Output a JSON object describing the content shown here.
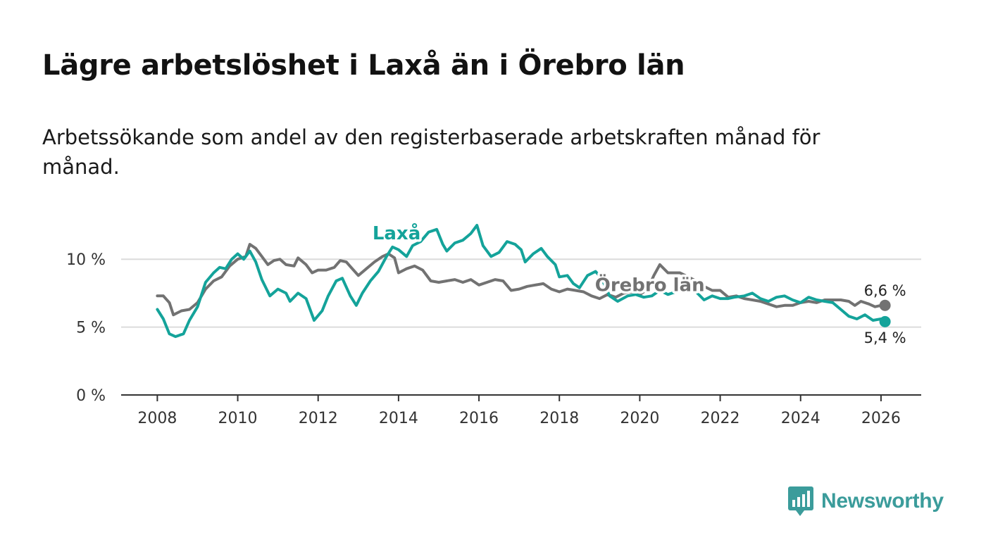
{
  "title": "Lägre arbetslöshet i Laxå än i Örebro län",
  "subtitle": "Arbetssökande som andel av den registerbaserade arbetskraften månad för månad.",
  "brand": {
    "name": "Newsworthy",
    "color": "#3b9c9b"
  },
  "chart_data": {
    "type": "line",
    "title": "Lägre arbetslöshet i Laxå än i Örebro län",
    "xlabel": "",
    "ylabel": "",
    "xlim": [
      2007.1,
      2027.0
    ],
    "ylim": [
      0,
      12.5
    ],
    "yticks": [
      0,
      5,
      10
    ],
    "ytick_labels": [
      "0 %",
      "5 %",
      "10 %"
    ],
    "xticks": [
      2008,
      2010,
      2012,
      2014,
      2016,
      2018,
      2020,
      2022,
      2024,
      2026
    ],
    "xtick_labels": [
      "2008",
      "2010",
      "2012",
      "2014",
      "2016",
      "2018",
      "2020",
      "2022",
      "2024",
      "2026"
    ],
    "grid": true,
    "series": [
      {
        "name": "Örebro län",
        "label": "Örebro län",
        "color": "#727272",
        "end_label": "6,6 %",
        "points": [
          [
            2008.0,
            7.3
          ],
          [
            2008.15,
            7.3
          ],
          [
            2008.3,
            6.8
          ],
          [
            2008.4,
            5.9
          ],
          [
            2008.6,
            6.2
          ],
          [
            2008.8,
            6.3
          ],
          [
            2009.0,
            6.8
          ],
          [
            2009.2,
            7.8
          ],
          [
            2009.4,
            8.4
          ],
          [
            2009.6,
            8.7
          ],
          [
            2009.8,
            9.5
          ],
          [
            2010.0,
            10.0
          ],
          [
            2010.2,
            10.2
          ],
          [
            2010.3,
            11.1
          ],
          [
            2010.45,
            10.8
          ],
          [
            2010.6,
            10.2
          ],
          [
            2010.75,
            9.6
          ],
          [
            2010.9,
            9.9
          ],
          [
            2011.05,
            10.0
          ],
          [
            2011.2,
            9.6
          ],
          [
            2011.4,
            9.5
          ],
          [
            2011.5,
            10.1
          ],
          [
            2011.7,
            9.6
          ],
          [
            2011.85,
            9.0
          ],
          [
            2012.0,
            9.2
          ],
          [
            2012.2,
            9.2
          ],
          [
            2012.4,
            9.4
          ],
          [
            2012.55,
            9.9
          ],
          [
            2012.7,
            9.8
          ],
          [
            2012.85,
            9.3
          ],
          [
            2013.0,
            8.8
          ],
          [
            2013.2,
            9.3
          ],
          [
            2013.4,
            9.8
          ],
          [
            2013.6,
            10.2
          ],
          [
            2013.75,
            10.4
          ],
          [
            2013.9,
            10.1
          ],
          [
            2014.0,
            9.0
          ],
          [
            2014.2,
            9.3
          ],
          [
            2014.4,
            9.5
          ],
          [
            2014.6,
            9.2
          ],
          [
            2014.8,
            8.4
          ],
          [
            2015.0,
            8.3
          ],
          [
            2015.2,
            8.4
          ],
          [
            2015.4,
            8.5
          ],
          [
            2015.6,
            8.3
          ],
          [
            2015.8,
            8.5
          ],
          [
            2016.0,
            8.1
          ],
          [
            2016.2,
            8.3
          ],
          [
            2016.4,
            8.5
          ],
          [
            2016.6,
            8.4
          ],
          [
            2016.8,
            7.7
          ],
          [
            2017.0,
            7.8
          ],
          [
            2017.2,
            8.0
          ],
          [
            2017.4,
            8.1
          ],
          [
            2017.6,
            8.2
          ],
          [
            2017.8,
            7.8
          ],
          [
            2018.0,
            7.6
          ],
          [
            2018.2,
            7.8
          ],
          [
            2018.4,
            7.7
          ],
          [
            2018.6,
            7.6
          ],
          [
            2018.8,
            7.3
          ],
          [
            2019.0,
            7.1
          ],
          [
            2019.2,
            7.4
          ],
          [
            2019.4,
            7.2
          ],
          [
            2019.6,
            7.5
          ],
          [
            2019.8,
            7.6
          ],
          [
            2020.0,
            7.4
          ],
          [
            2020.2,
            7.8
          ],
          [
            2020.35,
            8.8
          ],
          [
            2020.5,
            9.6
          ],
          [
            2020.7,
            9.0
          ],
          [
            2020.85,
            9.0
          ],
          [
            2021.0,
            9.0
          ],
          [
            2021.2,
            8.7
          ],
          [
            2021.4,
            8.4
          ],
          [
            2021.6,
            8.0
          ],
          [
            2021.8,
            7.7
          ],
          [
            2022.0,
            7.7
          ],
          [
            2022.2,
            7.2
          ],
          [
            2022.4,
            7.3
          ],
          [
            2022.6,
            7.1
          ],
          [
            2022.8,
            7.0
          ],
          [
            2023.0,
            6.9
          ],
          [
            2023.2,
            6.7
          ],
          [
            2023.4,
            6.5
          ],
          [
            2023.6,
            6.6
          ],
          [
            2023.8,
            6.6
          ],
          [
            2024.0,
            6.8
          ],
          [
            2024.2,
            6.9
          ],
          [
            2024.4,
            6.8
          ],
          [
            2024.6,
            7.0
          ],
          [
            2024.8,
            7.0
          ],
          [
            2025.0,
            7.0
          ],
          [
            2025.2,
            6.9
          ],
          [
            2025.35,
            6.6
          ],
          [
            2025.5,
            6.9
          ],
          [
            2025.7,
            6.7
          ],
          [
            2025.85,
            6.5
          ],
          [
            2026.0,
            6.6
          ],
          [
            2026.1,
            6.6
          ]
        ]
      },
      {
        "name": "Laxå",
        "label": "Laxå",
        "color": "#14a39a",
        "end_label": "5,4 %",
        "points": [
          [
            2008.0,
            6.3
          ],
          [
            2008.15,
            5.6
          ],
          [
            2008.3,
            4.5
          ],
          [
            2008.45,
            4.3
          ],
          [
            2008.65,
            4.5
          ],
          [
            2008.8,
            5.5
          ],
          [
            2009.0,
            6.5
          ],
          [
            2009.2,
            8.3
          ],
          [
            2009.4,
            9.0
          ],
          [
            2009.55,
            9.4
          ],
          [
            2009.7,
            9.3
          ],
          [
            2009.85,
            10.0
          ],
          [
            2010.0,
            10.4
          ],
          [
            2010.15,
            10.0
          ],
          [
            2010.3,
            10.6
          ],
          [
            2010.45,
            9.8
          ],
          [
            2010.6,
            8.5
          ],
          [
            2010.8,
            7.3
          ],
          [
            2011.0,
            7.8
          ],
          [
            2011.2,
            7.5
          ],
          [
            2011.3,
            6.9
          ],
          [
            2011.5,
            7.5
          ],
          [
            2011.7,
            7.1
          ],
          [
            2011.9,
            5.5
          ],
          [
            2012.1,
            6.2
          ],
          [
            2012.25,
            7.3
          ],
          [
            2012.45,
            8.4
          ],
          [
            2012.6,
            8.6
          ],
          [
            2012.8,
            7.3
          ],
          [
            2012.95,
            6.6
          ],
          [
            2013.1,
            7.5
          ],
          [
            2013.3,
            8.4
          ],
          [
            2013.5,
            9.1
          ],
          [
            2013.7,
            10.2
          ],
          [
            2013.85,
            10.9
          ],
          [
            2014.0,
            10.7
          ],
          [
            2014.2,
            10.2
          ],
          [
            2014.35,
            11.0
          ],
          [
            2014.55,
            11.3
          ],
          [
            2014.75,
            12.0
          ],
          [
            2014.95,
            12.2
          ],
          [
            2015.1,
            11.1
          ],
          [
            2015.2,
            10.6
          ],
          [
            2015.4,
            11.2
          ],
          [
            2015.6,
            11.4
          ],
          [
            2015.8,
            11.9
          ],
          [
            2015.95,
            12.5
          ],
          [
            2016.1,
            11.0
          ],
          [
            2016.3,
            10.2
          ],
          [
            2016.5,
            10.5
          ],
          [
            2016.7,
            11.3
          ],
          [
            2016.9,
            11.1
          ],
          [
            2017.05,
            10.7
          ],
          [
            2017.15,
            9.8
          ],
          [
            2017.35,
            10.4
          ],
          [
            2017.55,
            10.8
          ],
          [
            2017.7,
            10.2
          ],
          [
            2017.9,
            9.6
          ],
          [
            2018.0,
            8.7
          ],
          [
            2018.2,
            8.8
          ],
          [
            2018.35,
            8.2
          ],
          [
            2018.5,
            7.9
          ],
          [
            2018.7,
            8.8
          ],
          [
            2018.9,
            9.1
          ],
          [
            2019.05,
            8.6
          ],
          [
            2019.25,
            7.3
          ],
          [
            2019.45,
            6.9
          ],
          [
            2019.7,
            7.3
          ],
          [
            2019.9,
            7.4
          ],
          [
            2020.1,
            7.2
          ],
          [
            2020.3,
            7.3
          ],
          [
            2020.5,
            7.7
          ],
          [
            2020.7,
            7.4
          ],
          [
            2021.0,
            7.7
          ],
          [
            2021.2,
            7.9
          ],
          [
            2021.4,
            7.6
          ],
          [
            2021.6,
            7.0
          ],
          [
            2021.8,
            7.3
          ],
          [
            2022.0,
            7.1
          ],
          [
            2022.2,
            7.1
          ],
          [
            2022.35,
            7.2
          ],
          [
            2022.6,
            7.3
          ],
          [
            2022.8,
            7.5
          ],
          [
            2023.0,
            7.1
          ],
          [
            2023.2,
            6.9
          ],
          [
            2023.4,
            7.2
          ],
          [
            2023.6,
            7.3
          ],
          [
            2023.8,
            7.0
          ],
          [
            2024.0,
            6.8
          ],
          [
            2024.2,
            7.2
          ],
          [
            2024.4,
            7.0
          ],
          [
            2024.6,
            6.9
          ],
          [
            2024.8,
            6.8
          ],
          [
            2025.0,
            6.3
          ],
          [
            2025.2,
            5.8
          ],
          [
            2025.4,
            5.6
          ],
          [
            2025.6,
            5.9
          ],
          [
            2025.8,
            5.5
          ],
          [
            2026.0,
            5.6
          ],
          [
            2026.1,
            5.4
          ]
        ]
      }
    ]
  }
}
